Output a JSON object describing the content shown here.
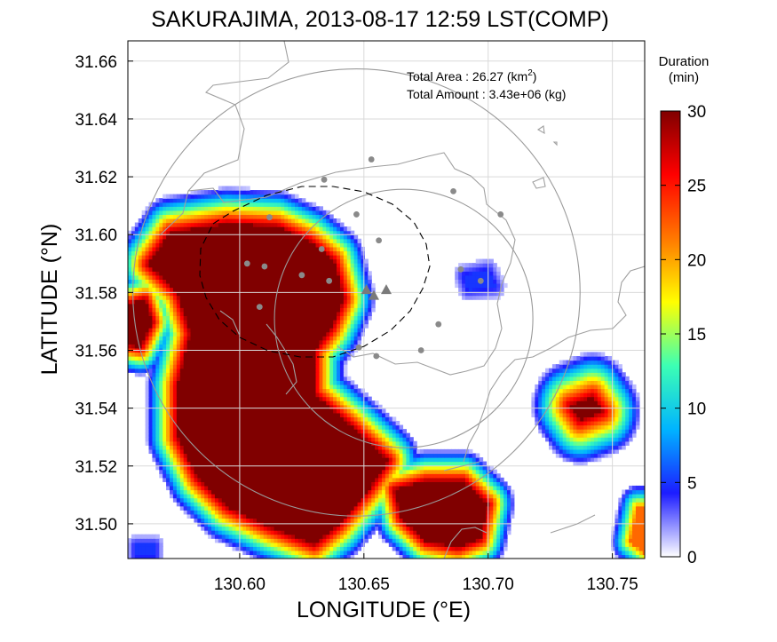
{
  "chart_data": {
    "type": "heatmap",
    "title": "SAKURAJIMA, 2013-08-17 12:59 LST(COMP)",
    "xlabel": "LONGITUDE (°E)",
    "ylabel": "LATITUDE (°N)",
    "xlim": [
      130.555,
      130.763
    ],
    "ylim": [
      31.488,
      31.667
    ],
    "x_ticks": [
      "130.60",
      "130.65",
      "130.70",
      "130.75"
    ],
    "y_ticks": [
      "31.50",
      "31.52",
      "31.54",
      "31.56",
      "31.58",
      "31.60",
      "31.62",
      "31.64",
      "31.66"
    ],
    "grid": true,
    "annotations": {
      "area_label": "Total Area   : 26.27 (km",
      "area_sup": "2",
      "area_close": ")",
      "amount_label": "Total Amount : 3.43e+06 (kg)"
    },
    "colorbar": {
      "title_line1": "Duration",
      "title_line2": "(min)",
      "min": 0,
      "max": 30,
      "tick_labels": [
        "0",
        "5",
        "10",
        "15",
        "20",
        "25",
        "30"
      ],
      "colors": [
        "#ffffff",
        "#1c1cff",
        "#00b4ff",
        "#3cffb4",
        "#ffff00",
        "#ff7800",
        "#ff0000",
        "#800000"
      ]
    },
    "range_circles": [
      {
        "lon": 130.647,
        "lat": 31.58,
        "radius_deg": 0.09
      },
      {
        "lon": 130.666,
        "lat": 31.571,
        "radius_deg": 0.052
      }
    ],
    "stations": [
      [
        130.653,
        31.626
      ],
      [
        130.634,
        31.619
      ],
      [
        130.686,
        31.615
      ],
      [
        130.705,
        31.607
      ],
      [
        130.647,
        31.607
      ],
      [
        130.612,
        31.606
      ],
      [
        130.656,
        31.598
      ],
      [
        130.633,
        31.595
      ],
      [
        130.61,
        31.589
      ],
      [
        130.603,
        31.59
      ],
      [
        130.625,
        31.586
      ],
      [
        130.636,
        31.584
      ],
      [
        130.689,
        31.588
      ],
      [
        130.697,
        31.584
      ],
      [
        130.608,
        31.575
      ],
      [
        130.68,
        31.569
      ],
      [
        130.648,
        31.561
      ],
      [
        130.673,
        31.56
      ],
      [
        130.655,
        31.558
      ]
    ],
    "vents": [
      [
        130.651,
        31.581
      ],
      [
        130.654,
        31.579
      ],
      [
        130.659,
        31.581
      ]
    ],
    "duration_regions": [
      {
        "name": "main-plume",
        "peak_min": 30,
        "polygon": [
          [
            130.563,
            31.59
          ],
          [
            130.572,
            31.601
          ],
          [
            130.595,
            31.604
          ],
          [
            130.615,
            31.603
          ],
          [
            130.628,
            31.598
          ],
          [
            130.638,
            31.591
          ],
          [
            130.642,
            31.578
          ],
          [
            130.637,
            31.568
          ],
          [
            130.63,
            31.56
          ],
          [
            130.63,
            31.545
          ],
          [
            130.645,
            31.534
          ],
          [
            130.66,
            31.522
          ],
          [
            130.652,
            31.512
          ],
          [
            130.64,
            31.5
          ],
          [
            130.63,
            31.493
          ],
          [
            130.612,
            31.499
          ],
          [
            130.595,
            31.506
          ],
          [
            130.583,
            31.516
          ],
          [
            130.575,
            31.53
          ],
          [
            130.575,
            31.548
          ],
          [
            130.58,
            31.566
          ],
          [
            130.575,
            31.58
          ]
        ],
        "spread": 0.013
      },
      {
        "name": "west-edge",
        "peak_min": 30,
        "polygon": [
          [
            130.555,
            31.576
          ],
          [
            130.562,
            31.578
          ],
          [
            130.565,
            31.57
          ],
          [
            130.56,
            31.561
          ],
          [
            130.555,
            31.562
          ]
        ],
        "spread": 0.01
      },
      {
        "name": "south-plume",
        "peak_min": 30,
        "polygon": [
          [
            130.662,
            31.512
          ],
          [
            130.675,
            31.515
          ],
          [
            130.69,
            31.515
          ],
          [
            130.7,
            31.507
          ],
          [
            130.697,
            31.495
          ],
          [
            130.688,
            31.492
          ],
          [
            130.675,
            31.494
          ],
          [
            130.665,
            31.502
          ]
        ],
        "spread": 0.011
      },
      {
        "name": "east-cell",
        "peak_min": 30,
        "polygon": [
          [
            130.733,
            31.541
          ],
          [
            130.742,
            31.544
          ],
          [
            130.746,
            31.539
          ],
          [
            130.737,
            31.536
          ]
        ],
        "spread": 0.016
      },
      {
        "name": "ne-patch",
        "peak_min": 5,
        "polygon": [
          [
            130.69,
            31.586
          ],
          [
            130.7,
            31.588
          ],
          [
            130.703,
            31.582
          ],
          [
            130.692,
            31.581
          ]
        ],
        "spread": 0.005
      },
      {
        "name": "se-edge",
        "peak_min": 22,
        "polygon": [
          [
            130.76,
            31.506
          ],
          [
            130.763,
            31.506
          ],
          [
            130.763,
            31.49
          ],
          [
            130.757,
            31.494
          ]
        ],
        "spread": 0.008
      },
      {
        "name": "sw-speck",
        "peak_min": 5,
        "polygon": [
          [
            130.558,
            31.493
          ],
          [
            130.566,
            31.493
          ],
          [
            130.566,
            31.489
          ],
          [
            130.558,
            31.489
          ]
        ],
        "spread": 0.004
      }
    ]
  }
}
